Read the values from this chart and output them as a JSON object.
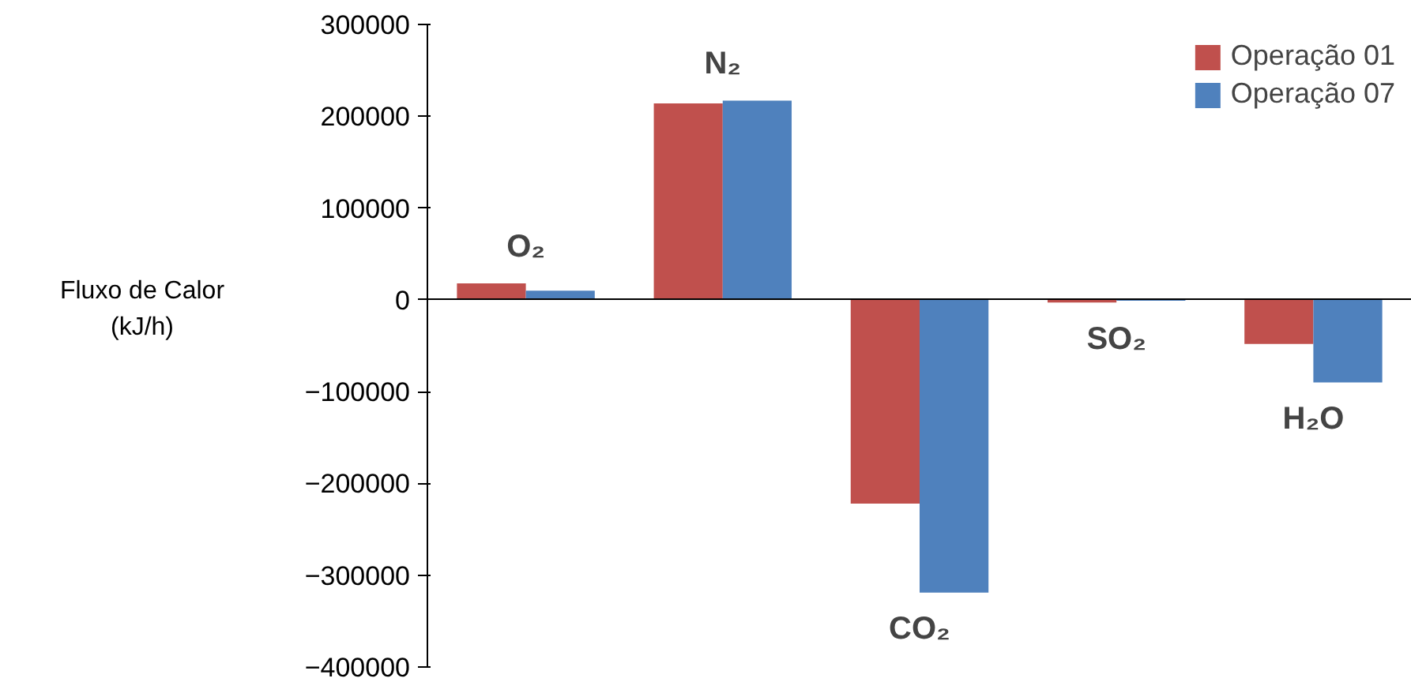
{
  "chart_data": {
    "type": "bar",
    "ylabel": "Fluxo de Calor\n(kJ/h)",
    "categories": [
      "O₂",
      "N₂",
      "CO₂",
      "SO₂",
      "H₂O"
    ],
    "series": [
      {
        "name": "Operação 01",
        "color": "#c0504d",
        "values": [
          18000,
          214000,
          -222000,
          -3000,
          -48000
        ]
      },
      {
        "name": "Operação 07",
        "color": "#4f81bd",
        "values": [
          10000,
          217000,
          -319000,
          -1000,
          -90000
        ]
      }
    ],
    "ylim": [
      -400000,
      300000
    ],
    "yticks": [
      -400000,
      -300000,
      -200000,
      -100000,
      0,
      100000,
      200000,
      300000
    ],
    "legend": "top right",
    "tick_labels": "y"
  }
}
